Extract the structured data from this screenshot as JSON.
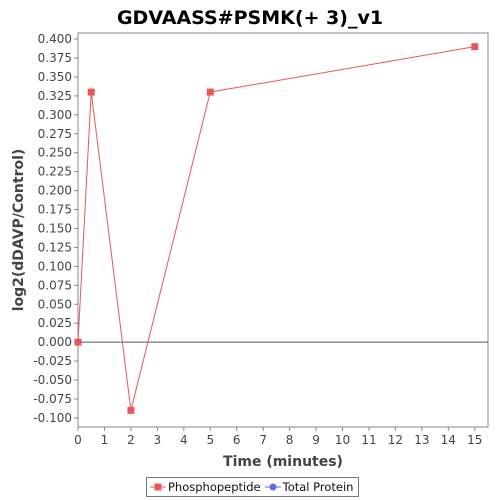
{
  "chart_data": {
    "type": "line",
    "title": "GDVAASS#PSMK(+ 3)_v1",
    "xlabel": "Time (minutes)",
    "ylabel": "log2(dDAVP/Control)",
    "xlim": [
      0,
      15.5
    ],
    "ylim": [
      -0.112,
      0.408
    ],
    "x_ticks": [
      0,
      1,
      2,
      3,
      4,
      5,
      6,
      7,
      8,
      9,
      10,
      11,
      12,
      13,
      14,
      15
    ],
    "y_ticks": [
      "0.400",
      "0.375",
      "0.350",
      "0.325",
      "0.300",
      "0.275",
      "0.250",
      "0.225",
      "0.200",
      "0.175",
      "0.150",
      "0.125",
      "0.100",
      "0.075",
      "0.050",
      "0.025",
      "0.000",
      "-0.025",
      "-0.050",
      "-0.075",
      "-0.100"
    ],
    "grid": false,
    "legend_position": "bottom-center",
    "series": [
      {
        "name": "Phosphopeptide",
        "color": "#e8575a",
        "marker": "square",
        "x": [
          0,
          0.5,
          2,
          5,
          15
        ],
        "y": [
          0.0,
          0.33,
          -0.09,
          0.33,
          0.39
        ]
      },
      {
        "name": "Total Protein",
        "color": "#5b6ee8",
        "marker": "circle",
        "x": [],
        "y": []
      }
    ]
  }
}
